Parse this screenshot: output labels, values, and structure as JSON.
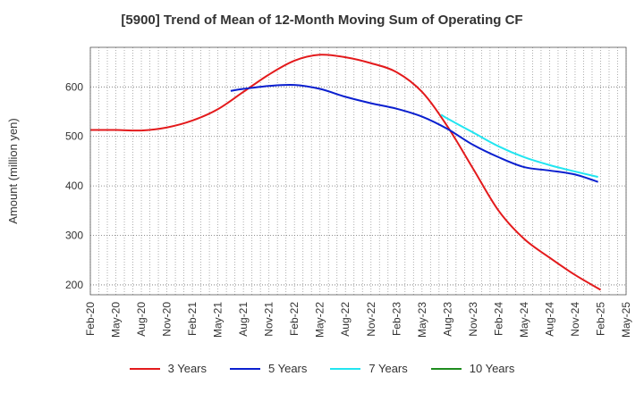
{
  "chart_data": {
    "type": "line",
    "title": "[5900]  Trend of Mean of 12-Month Moving Sum of Operating CF",
    "xlabel": "",
    "ylabel": "Amount (million yen)",
    "ylim": [
      180,
      680
    ],
    "yticks": [
      200,
      300,
      400,
      500,
      600
    ],
    "x_tick_labels": [
      "Feb-20",
      "May-20",
      "Aug-20",
      "Nov-20",
      "Feb-21",
      "May-21",
      "Aug-21",
      "Nov-21",
      "Feb-22",
      "May-22",
      "Aug-22",
      "Nov-22",
      "Feb-23",
      "May-23",
      "Aug-23",
      "Nov-23",
      "Feb-24",
      "May-24",
      "Aug-24",
      "Nov-24",
      "Feb-25",
      "May-25"
    ],
    "grid": true,
    "legend_position": "bottom",
    "series": [
      {
        "name": "3 Years",
        "color": "#e31a1c",
        "points": [
          [
            0,
            513
          ],
          [
            1,
            513
          ],
          [
            2,
            512
          ],
          [
            3,
            518
          ],
          [
            4,
            532
          ],
          [
            5,
            555
          ],
          [
            6,
            590
          ],
          [
            7,
            625
          ],
          [
            8,
            653
          ],
          [
            9,
            665
          ],
          [
            10,
            660
          ],
          [
            11,
            648
          ],
          [
            12,
            630
          ],
          [
            13,
            590
          ],
          [
            14,
            520
          ],
          [
            15,
            435
          ],
          [
            16,
            350
          ],
          [
            17,
            293
          ],
          [
            18,
            255
          ],
          [
            19,
            220
          ],
          [
            20,
            190
          ]
        ]
      },
      {
        "name": "5 Years",
        "color": "#0a1fcf",
        "points": [
          [
            5.5,
            592
          ],
          [
            6,
            596
          ],
          [
            7,
            602
          ],
          [
            8,
            604
          ],
          [
            9,
            596
          ],
          [
            10,
            580
          ],
          [
            11,
            567
          ],
          [
            12,
            556
          ],
          [
            13,
            540
          ],
          [
            14,
            515
          ],
          [
            15,
            483
          ],
          [
            16,
            458
          ],
          [
            17,
            438
          ],
          [
            18,
            431
          ],
          [
            19,
            423
          ],
          [
            19.9,
            408
          ]
        ]
      },
      {
        "name": "7 Years",
        "color": "#22e5f0",
        "points": [
          [
            13.75,
            544
          ],
          [
            14,
            536
          ],
          [
            15,
            508
          ],
          [
            16,
            480
          ],
          [
            17,
            458
          ],
          [
            18,
            442
          ],
          [
            19,
            429
          ],
          [
            19.9,
            418
          ]
        ]
      },
      {
        "name": "10 Years",
        "color": "#1e8c1e",
        "points": []
      }
    ]
  }
}
